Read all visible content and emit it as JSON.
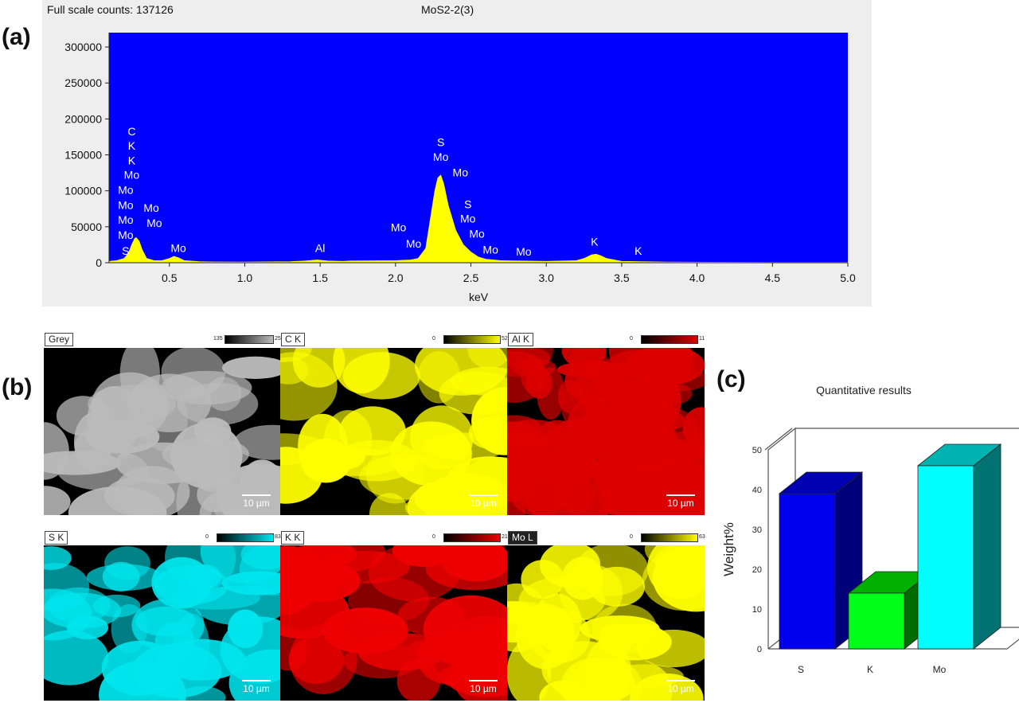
{
  "panels": {
    "a": "(a)",
    "b": "(b)",
    "c": "(c)"
  },
  "spectrum": {
    "header_left": "Full scale counts: 137126",
    "header_center": "MoS2-2(3)"
  },
  "chart_data": [
    {
      "type": "area",
      "title": "MoS2-2(3)",
      "xlabel": "keV",
      "ylabel": "",
      "xlim": [
        0.1,
        5.0
      ],
      "ylim": [
        0,
        320000
      ],
      "xticks": [
        "0.5",
        "1.0",
        "1.5",
        "2.0",
        "2.5",
        "3.0",
        "3.5",
        "4.0",
        "4.5",
        "5.0"
      ],
      "xtick_values": [
        0.5,
        1.0,
        1.5,
        2.0,
        2.5,
        3.0,
        3.5,
        4.0,
        4.5,
        5.0
      ],
      "yticks": [
        "0",
        "50000",
        "100000",
        "150000",
        "200000",
        "250000",
        "300000"
      ],
      "ytick_values": [
        0,
        50000,
        100000,
        150000,
        200000,
        250000,
        300000
      ],
      "background": "#0000ff",
      "fill": "#ffff00",
      "x": [
        0.1,
        0.15,
        0.2,
        0.23,
        0.25,
        0.27,
        0.28,
        0.3,
        0.32,
        0.35,
        0.4,
        0.45,
        0.5,
        0.53,
        0.56,
        0.6,
        0.7,
        0.8,
        1.0,
        1.3,
        1.4,
        1.48,
        1.55,
        1.65,
        1.7,
        2.0,
        2.1,
        2.15,
        2.2,
        2.23,
        2.26,
        2.28,
        2.3,
        2.32,
        2.35,
        2.4,
        2.45,
        2.5,
        2.55,
        2.6,
        2.7,
        3.0,
        3.2,
        3.25,
        3.3,
        3.33,
        3.36,
        3.4,
        3.5,
        3.8,
        4.5,
        5.0
      ],
      "y": [
        2000,
        3000,
        6000,
        14000,
        25000,
        34000,
        35000,
        30000,
        18000,
        6000,
        3000,
        3000,
        6000,
        9000,
        7000,
        3000,
        1500,
        1200,
        1000,
        1500,
        2500,
        4000,
        2500,
        2000,
        2500,
        3000,
        4000,
        6000,
        20000,
        60000,
        100000,
        118000,
        122000,
        110000,
        80000,
        45000,
        25000,
        15000,
        8000,
        5000,
        3000,
        2000,
        3000,
        6000,
        11000,
        12000,
        10000,
        6000,
        2000,
        1000,
        500,
        500
      ],
      "peak_labels": [
        {
          "text": "C",
          "x": 0.25,
          "y": 177000
        },
        {
          "text": "K",
          "x": 0.25,
          "y": 157000
        },
        {
          "text": "K",
          "x": 0.25,
          "y": 137000
        },
        {
          "text": "Mo",
          "x": 0.25,
          "y": 117000
        },
        {
          "text": "Mo",
          "x": 0.21,
          "y": 96000
        },
        {
          "text": "Mo",
          "x": 0.21,
          "y": 75000
        },
        {
          "text": "Mo",
          "x": 0.21,
          "y": 54000
        },
        {
          "text": "Mo",
          "x": 0.21,
          "y": 33000
        },
        {
          "text": "S",
          "x": 0.21,
          "y": 11000
        },
        {
          "text": "Mo",
          "x": 0.38,
          "y": 71000
        },
        {
          "text": "Mo",
          "x": 0.4,
          "y": 50000
        },
        {
          "text": "Mo",
          "x": 0.56,
          "y": 15000
        },
        {
          "text": "Al",
          "x": 1.5,
          "y": 15000
        },
        {
          "text": "Mo",
          "x": 2.02,
          "y": 44000
        },
        {
          "text": "Mo",
          "x": 2.12,
          "y": 21000
        },
        {
          "text": "S",
          "x": 2.3,
          "y": 162000
        },
        {
          "text": "Mo",
          "x": 2.3,
          "y": 142000
        },
        {
          "text": "Mo",
          "x": 2.43,
          "y": 120000
        },
        {
          "text": "S",
          "x": 2.48,
          "y": 76000
        },
        {
          "text": "Mo",
          "x": 2.48,
          "y": 56000
        },
        {
          "text": "Mo",
          "x": 2.54,
          "y": 35000
        },
        {
          "text": "Mo",
          "x": 2.63,
          "y": 13000
        },
        {
          "text": "Mo",
          "x": 2.85,
          "y": 10000
        },
        {
          "text": "K",
          "x": 3.32,
          "y": 24000
        },
        {
          "text": "K",
          "x": 3.61,
          "y": 11000
        }
      ]
    },
    {
      "type": "bar",
      "title": "Quantitative results",
      "xlabel": "",
      "ylabel": "Weight%",
      "categories": [
        "S",
        "K",
        "Mo"
      ],
      "values": [
        39,
        14,
        46
      ],
      "ylim": [
        0,
        50
      ],
      "yticks": [
        "0",
        "10",
        "20",
        "30",
        "40",
        "50"
      ],
      "ytick_values": [
        0,
        10,
        20,
        30,
        40,
        50
      ],
      "bar_colors": [
        {
          "front": "#0000ee",
          "side": "#00007a",
          "top": "#0000b0"
        },
        {
          "front": "#00ff1a",
          "side": "#006b00",
          "top": "#00b000"
        },
        {
          "front": "#00ffff",
          "side": "#007272",
          "top": "#00b3b3"
        }
      ]
    }
  ],
  "maps": [
    {
      "label": "Grey",
      "cmin": "135",
      "cmax": "255",
      "color": "#bbbbbb",
      "scale": "10 µm",
      "dark_label": false
    },
    {
      "label": "C K",
      "cmin": "0",
      "cmax": "52",
      "color": "#ffff00",
      "scale": "10 µm",
      "dark_label": false
    },
    {
      "label": "Al K",
      "cmin": "0",
      "cmax": "11",
      "color": "#dd0000",
      "scale": "10 µm",
      "dark_label": false
    },
    {
      "label": "S K",
      "cmin": "0",
      "cmax": "83",
      "color": "#00e5ee",
      "scale": "10 µm",
      "dark_label": false
    },
    {
      "label": "K K",
      "cmin": "0",
      "cmax": "21",
      "color": "#ee0000",
      "scale": "10 µm",
      "dark_label": false
    },
    {
      "label": "Mo L",
      "cmin": "0",
      "cmax": "63",
      "color": "#ffff00",
      "scale": "10 µm",
      "dark_label": true
    }
  ]
}
